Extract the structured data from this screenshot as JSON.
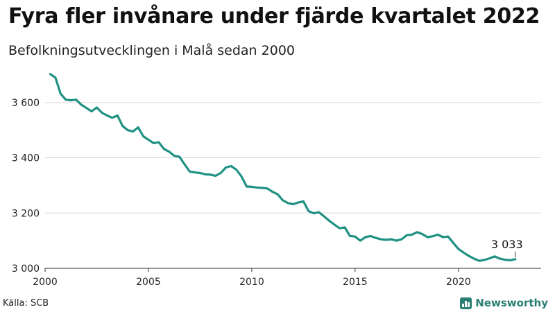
{
  "header": {
    "title": "Fyra fler invånare under fjärde kvartalet 2022",
    "subtitle": "Befolkningsutvecklingen i Malå sedan 2000"
  },
  "footer": {
    "source": "Källa: SCB",
    "brand": "Newsworthy"
  },
  "colors": {
    "line": "#1f9183"
  },
  "chart_data": {
    "type": "line",
    "title": "Fyra fler invånare under fjärde kvartalet 2022",
    "subtitle": "Befolkningsutvecklingen i Malå sedan 2000",
    "xlabel": "",
    "ylabel": "",
    "xlim": [
      2000,
      2024
    ],
    "ylim": [
      3000,
      3720
    ],
    "grid": true,
    "legend": "none",
    "x_ticks": [
      2000,
      2005,
      2010,
      2015,
      2020
    ],
    "x_tick_labels": [
      "2000",
      "2005",
      "2010",
      "2015",
      "2020"
    ],
    "y_ticks": [
      3000,
      3200,
      3400,
      3600
    ],
    "y_tick_labels": [
      "3 000",
      "3 200",
      "3 400",
      "3 600"
    ],
    "annotation": {
      "x": 2022.75,
      "y": 3033,
      "label": "3 033"
    },
    "series": [
      {
        "x": [
          2000.25,
          2000.5,
          2000.75,
          2001.0,
          2001.25,
          2001.5,
          2001.75,
          2002.0,
          2002.25,
          2002.5,
          2002.75,
          2003.0,
          2003.25,
          2003.5,
          2003.75,
          2004.0,
          2004.25,
          2004.5,
          2004.75,
          2005.0,
          2005.25,
          2005.5,
          2005.75,
          2006.0,
          2006.25,
          2006.5,
          2006.75,
          2007.0,
          2007.25,
          2007.5,
          2007.75,
          2008.0,
          2008.25,
          2008.5,
          2008.75,
          2009.0,
          2009.25,
          2009.5,
          2009.75,
          2010.0,
          2010.25,
          2010.5,
          2010.75,
          2011.0,
          2011.25,
          2011.5,
          2011.75,
          2012.0,
          2012.25,
          2012.5,
          2012.75,
          2013.0,
          2013.25,
          2013.5,
          2013.75,
          2014.0,
          2014.25,
          2014.5,
          2014.75,
          2015.0,
          2015.25,
          2015.5,
          2015.75,
          2016.0,
          2016.25,
          2016.5,
          2016.75,
          2017.0,
          2017.25,
          2017.5,
          2017.75,
          2018.0,
          2018.25,
          2018.5,
          2018.75,
          2019.0,
          2019.25,
          2019.5,
          2019.75,
          2020.0,
          2020.25,
          2020.5,
          2020.75,
          2021.0,
          2021.25,
          2021.5,
          2021.75,
          2022.0,
          2022.25,
          2022.5,
          2022.75
        ],
        "values": [
          3703,
          3690,
          3632,
          3610,
          3608,
          3610,
          3592,
          3580,
          3568,
          3582,
          3563,
          3553,
          3545,
          3553,
          3515,
          3500,
          3495,
          3510,
          3478,
          3465,
          3453,
          3456,
          3432,
          3422,
          3407,
          3404,
          3376,
          3350,
          3347,
          3345,
          3340,
          3339,
          3335,
          3345,
          3365,
          3370,
          3357,
          3333,
          3296,
          3295,
          3292,
          3291,
          3289,
          3277,
          3268,
          3246,
          3236,
          3232,
          3238,
          3242,
          3207,
          3199,
          3203,
          3188,
          3172,
          3158,
          3145,
          3148,
          3117,
          3115,
          3100,
          3113,
          3117,
          3110,
          3105,
          3103,
          3105,
          3100,
          3105,
          3120,
          3122,
          3131,
          3124,
          3113,
          3116,
          3122,
          3113,
          3115,
          3092,
          3070,
          3057,
          3045,
          3035,
          3027,
          3030,
          3036,
          3043,
          3035,
          3031,
          3029,
          3033
        ]
      }
    ]
  }
}
